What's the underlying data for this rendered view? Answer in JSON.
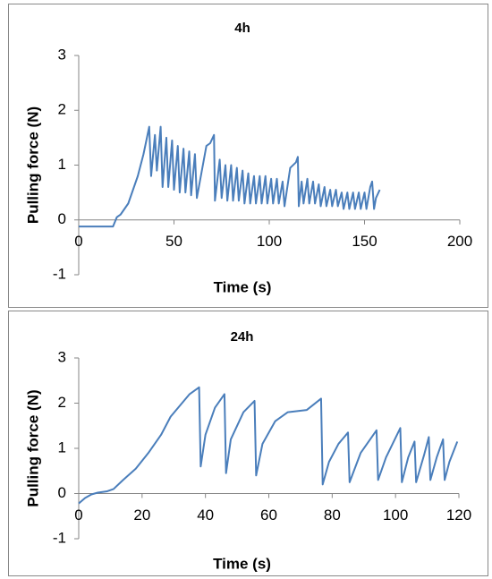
{
  "chart_data": [
    {
      "type": "line",
      "title": "4h",
      "x_label": "Time (s)",
      "y_label": "Pulling force (N)",
      "xlim": [
        0,
        200
      ],
      "ylim": [
        -1,
        3
      ],
      "xticks": [
        0,
        50,
        100,
        150,
        200
      ],
      "yticks": [
        -1,
        0,
        1,
        2,
        3
      ],
      "color": "#4a7ebb",
      "x": [
        0,
        18,
        20,
        22,
        26,
        31,
        34,
        37,
        38,
        40,
        41,
        43,
        44,
        46,
        47,
        49,
        50,
        52,
        53,
        55,
        56,
        58,
        59,
        61,
        62,
        67,
        69,
        71,
        71.5,
        74,
        75,
        77,
        78,
        80,
        81,
        83,
        84,
        86,
        87,
        89,
        90,
        92,
        93,
        95,
        96,
        98,
        99,
        101,
        102,
        104,
        105,
        107,
        108,
        111,
        114,
        115,
        115.5,
        117,
        118,
        120,
        121,
        123,
        124,
        126,
        127,
        129,
        130,
        132,
        133,
        135,
        136,
        138,
        139,
        141,
        142,
        144,
        145,
        147,
        148,
        150,
        151,
        153,
        154,
        155,
        156,
        158
      ],
      "values": [
        -0.12,
        -0.12,
        0.05,
        0.1,
        0.3,
        0.8,
        1.2,
        1.7,
        0.8,
        1.55,
        0.9,
        1.7,
        0.6,
        1.5,
        0.6,
        1.45,
        0.55,
        1.35,
        0.5,
        1.3,
        0.5,
        1.25,
        0.45,
        1.2,
        0.4,
        1.35,
        1.4,
        1.55,
        0.35,
        1.1,
        0.4,
        1.0,
        0.35,
        1.0,
        0.35,
        0.95,
        0.35,
        0.9,
        0.3,
        0.85,
        0.3,
        0.8,
        0.3,
        0.8,
        0.3,
        0.8,
        0.3,
        0.75,
        0.3,
        0.75,
        0.3,
        0.7,
        0.25,
        0.95,
        1.05,
        1.15,
        0.25,
        0.7,
        0.3,
        0.75,
        0.3,
        0.7,
        0.3,
        0.65,
        0.25,
        0.6,
        0.25,
        0.55,
        0.25,
        0.55,
        0.25,
        0.5,
        0.2,
        0.5,
        0.2,
        0.5,
        0.2,
        0.5,
        0.2,
        0.5,
        0.2,
        0.6,
        0.7,
        0.2,
        0.4,
        0.55
      ]
    },
    {
      "type": "line",
      "title": "24h",
      "x_label": "Time (s)",
      "y_label": "Pulling force (N)",
      "xlim": [
        0,
        120
      ],
      "ylim": [
        -1,
        3
      ],
      "xticks": [
        0,
        20,
        40,
        60,
        80,
        100,
        120
      ],
      "yticks": [
        -1,
        0,
        1,
        2,
        3
      ],
      "color": "#4a7ebb",
      "x": [
        0,
        2,
        4,
        6,
        9,
        11,
        14,
        18,
        22,
        26,
        29,
        32,
        35,
        38,
        38.5,
        40,
        43,
        46,
        46.5,
        48,
        52,
        55.5,
        56,
        58,
        62,
        66,
        72,
        76.5,
        77,
        79,
        82,
        85,
        85.5,
        89,
        94,
        94.5,
        97,
        101.5,
        102,
        104,
        106,
        106.5,
        109,
        110.5,
        111,
        113,
        115,
        115.5,
        117,
        119.5
      ],
      "values": [
        -0.22,
        -0.1,
        -0.02,
        0.02,
        0.05,
        0.1,
        0.3,
        0.55,
        0.9,
        1.3,
        1.7,
        1.95,
        2.2,
        2.35,
        0.6,
        1.3,
        1.9,
        2.2,
        0.45,
        1.2,
        1.8,
        2.05,
        0.4,
        1.1,
        1.6,
        1.8,
        1.85,
        2.1,
        0.2,
        0.7,
        1.1,
        1.35,
        0.25,
        0.9,
        1.4,
        0.3,
        0.8,
        1.45,
        0.25,
        0.8,
        1.15,
        0.25,
        0.85,
        1.25,
        0.3,
        0.8,
        1.2,
        0.3,
        0.7,
        1.15
      ]
    }
  ]
}
